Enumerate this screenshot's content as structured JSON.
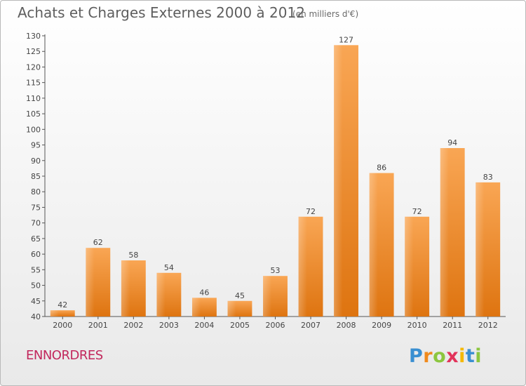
{
  "title": "Achats et Charges Externes 2000 à 2012",
  "unit": "(en milliers d'€)",
  "commune": "ENNORDRES",
  "logo_text": "Proxiti",
  "colors": {
    "bar_light": "#f9a654",
    "bar_dark": "#de7410",
    "commune": "#c2275c",
    "text": "#5e5e5e"
  },
  "chart_data": {
    "type": "bar",
    "title": "Achats et Charges Externes 2000 à 2012",
    "xlabel": "",
    "ylabel": "",
    "categories": [
      "2000",
      "2001",
      "2002",
      "2003",
      "2004",
      "2005",
      "2006",
      "2007",
      "2008",
      "2009",
      "2010",
      "2011",
      "2012"
    ],
    "values": [
      42,
      62,
      58,
      54,
      46,
      45,
      53,
      72,
      127,
      86,
      72,
      94,
      83
    ],
    "ylim": [
      40,
      130
    ],
    "yticks": [
      40,
      45,
      50,
      55,
      60,
      65,
      70,
      75,
      80,
      85,
      90,
      95,
      100,
      105,
      110,
      115,
      120,
      125,
      130
    ],
    "grid": false,
    "data_labels": true
  }
}
